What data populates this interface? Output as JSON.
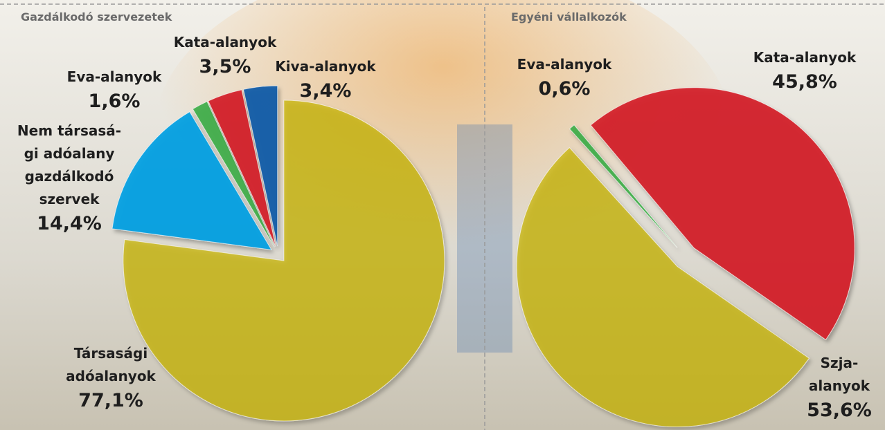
{
  "chart_data": [
    {
      "type": "pie",
      "title": "Gazdálkodó szervezetek",
      "categories": [
        [
          "Társasági",
          "adóalanyok"
        ],
        [
          "Nem társasá-",
          "gi adóalany",
          "gazdálkodó",
          "szervek"
        ],
        [
          "Eva-alanyok"
        ],
        [
          "Kata-alanyok"
        ],
        [
          "Kiva-alanyok"
        ]
      ],
      "values": [
        77.1,
        14.4,
        1.6,
        3.5,
        3.4
      ],
      "value_labels": [
        "77,1%",
        "14,4%",
        "1,6%",
        "3,5%",
        "3,4%"
      ],
      "colors": [
        "#c8b400",
        "#00a0e3",
        "#3fae49",
        "#d42027",
        "#0a5aa8"
      ]
    },
    {
      "type": "pie",
      "title": "Egyéni vállalkozók",
      "categories": [
        [
          "Kata-alanyok"
        ],
        [
          "Szja-",
          "alanyok"
        ],
        [
          "Eva-alanyok"
        ]
      ],
      "values": [
        45.8,
        53.6,
        0.6
      ],
      "value_labels": [
        "45,8%",
        "53,6%",
        "0,6%"
      ],
      "colors": [
        "#d42027",
        "#c8b400",
        "#3fae49"
      ]
    }
  ]
}
